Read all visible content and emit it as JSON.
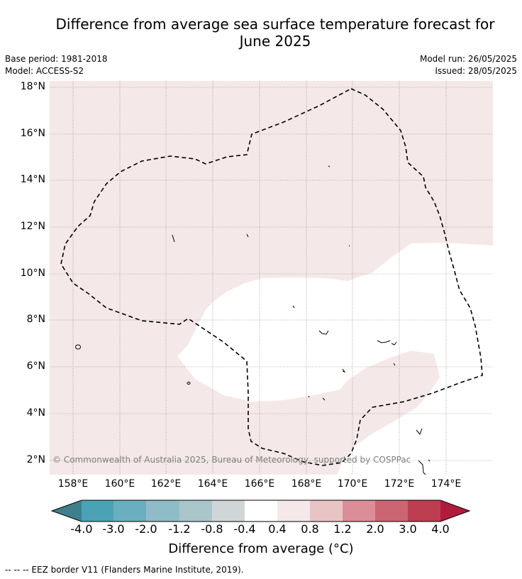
{
  "title_line1": "Difference from average sea surface temperature forecast for",
  "title_line2": "June 2025",
  "meta_left": {
    "base_period": "Base period: 1981-2018",
    "model": "Model: ACCESS-S2"
  },
  "meta_right": {
    "model_run": "Model run: 26/05/2025",
    "issued": "Issued: 28/05/2025"
  },
  "map": {
    "lat_labels": [
      "18°N",
      "16°N",
      "14°N",
      "12°N",
      "10°N",
      "8°N",
      "6°N",
      "4°N",
      "2°N"
    ],
    "lon_labels": [
      "158°E",
      "160°E",
      "162°E",
      "164°E",
      "166°E",
      "168°E",
      "170°E",
      "172°E",
      "174°E"
    ],
    "background_color": "#f5e8e8",
    "neutral_color": "#ffffff",
    "copyright": "© Commonwealth of Australia 2025, Bureau of Meteorology, supported by COSPPac"
  },
  "colorbar": {
    "labels": [
      "-4.0",
      "-3.0",
      "-2.0",
      "-1.2",
      "-0.8",
      "-0.4",
      "0.4",
      "0.8",
      "1.2",
      "2.0",
      "3.0",
      "4.0"
    ],
    "colors": [
      "#3f7f8c",
      "#4aa3b4",
      "#6aafbf",
      "#8ebcc7",
      "#a9c6cb",
      "#d0d6d8",
      "#ffffff",
      "#f5e8e8",
      "#e8c4c4",
      "#db8e98",
      "#cb6572",
      "#bd3e50",
      "#b01c3c"
    ],
    "title": "Difference from average (°C)"
  },
  "legend": "--  --  -- EEZ border V11 (Flanders Marine Institute, 2019)."
}
